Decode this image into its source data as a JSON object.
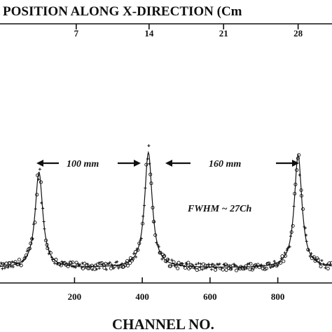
{
  "chart_data": {
    "type": "scatter",
    "title": "POSITION ALONG X-DIRECTION (Cm",
    "xlabel": "CHANNEL NO.",
    "ylabel": "",
    "xlim": [
      -20,
      960
    ],
    "ylim": [
      0,
      1
    ],
    "grid": false,
    "legend": "none",
    "bottom_ticks": [
      200,
      400,
      600,
      800
    ],
    "top_axis": {
      "ticks": [
        {
          "label": "7",
          "channel": 205
        },
        {
          "label": "14",
          "channel": 420
        },
        {
          "label": "21",
          "channel": 640
        },
        {
          "label": "28",
          "channel": 860
        }
      ]
    },
    "annotations": {
      "left_spacing": "100 mm",
      "right_spacing": "160 mm",
      "fwhm": "FWHM ~ 27Ch"
    },
    "peaks": [
      {
        "channel": 95,
        "height": 0.78
      },
      {
        "channel": 418,
        "height": 0.93
      },
      {
        "channel": 860,
        "height": 0.91
      }
    ],
    "baseline": 0.04,
    "colors": {
      "ink": "#111111",
      "background": "#ffffff"
    }
  }
}
